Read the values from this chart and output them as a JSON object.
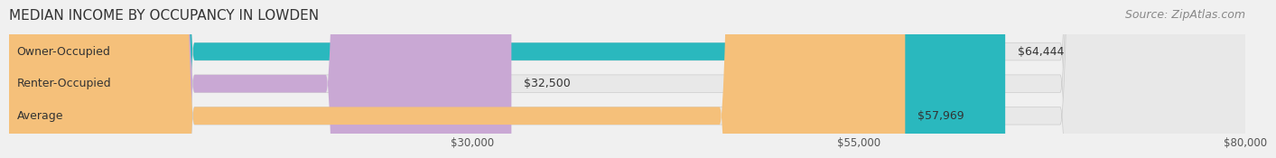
{
  "title": "MEDIAN INCOME BY OCCUPANCY IN LOWDEN",
  "source": "Source: ZipAtlas.com",
  "categories": [
    "Owner-Occupied",
    "Renter-Occupied",
    "Average"
  ],
  "values": [
    64444,
    32500,
    57969
  ],
  "labels": [
    "$64,444",
    "$32,500",
    "$57,969"
  ],
  "bar_colors": [
    "#2ab8be",
    "#c9a8d4",
    "#f5c07a"
  ],
  "bar_edge_colors": [
    "#2ab8be",
    "#c9a8d4",
    "#f5c07a"
  ],
  "xmin": 0,
  "xmax": 80000,
  "xticks": [
    30000,
    55000,
    80000
  ],
  "xtick_labels": [
    "$30,000",
    "$55,000",
    "$80,000"
  ],
  "background_color": "#f0f0f0",
  "bar_bg_color": "#e8e8e8",
  "title_fontsize": 11,
  "source_fontsize": 9,
  "label_fontsize": 9,
  "category_fontsize": 9,
  "tick_fontsize": 8.5
}
